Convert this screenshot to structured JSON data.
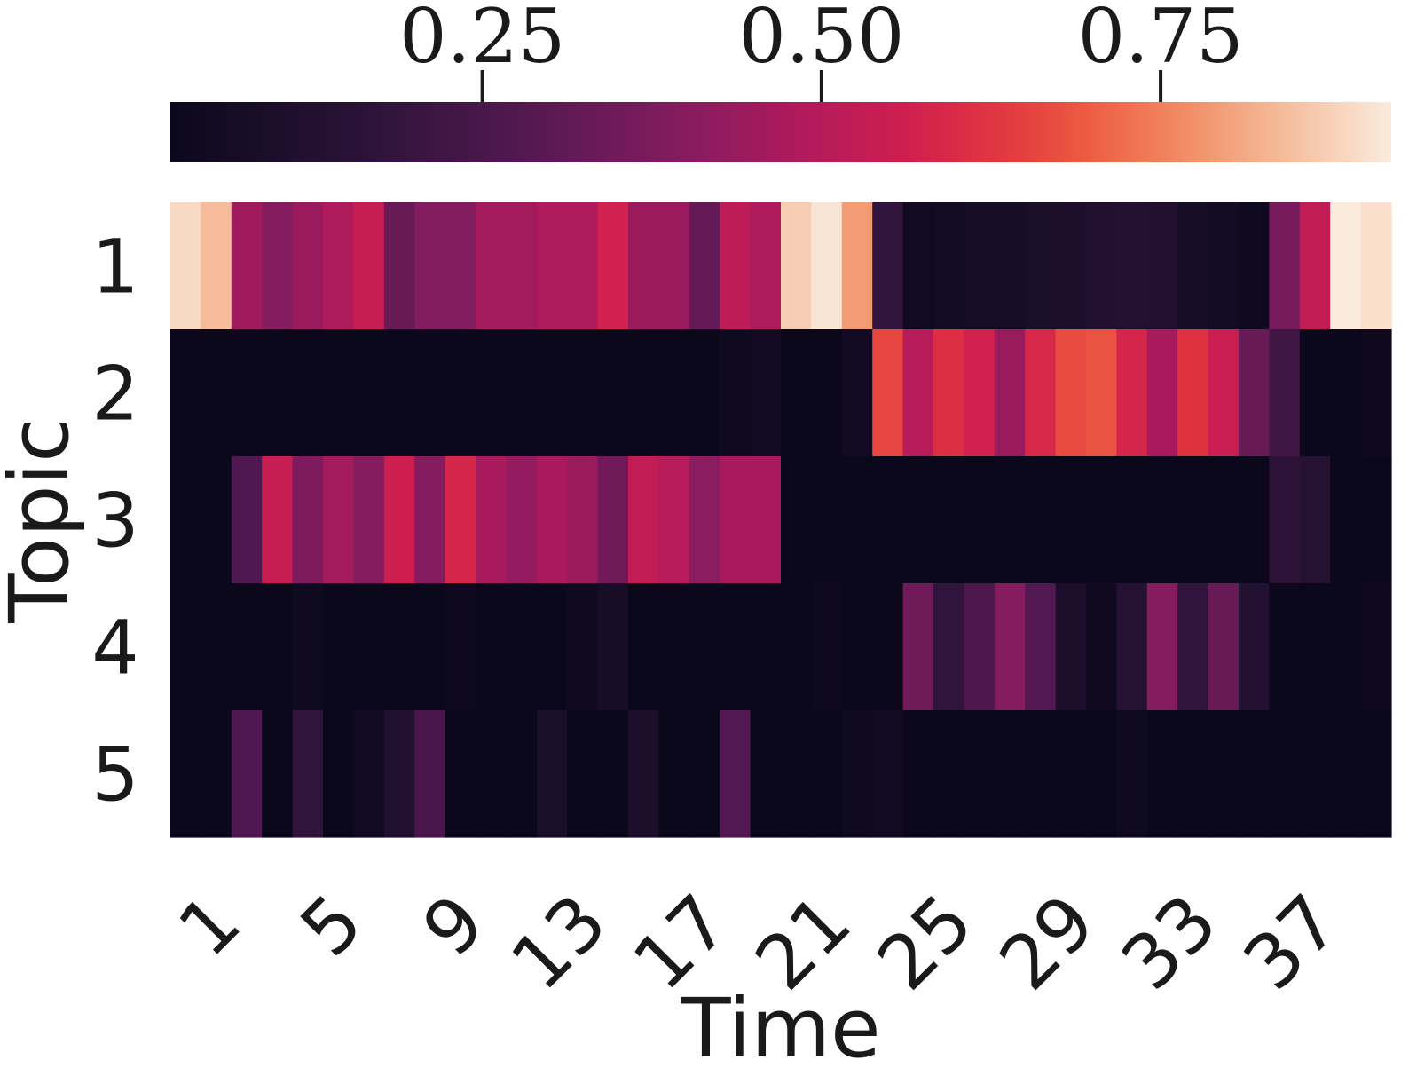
{
  "chart_data": {
    "type": "heatmap",
    "title": "",
    "xlabel": "Time",
    "ylabel": "Topic",
    "x_categories": [
      "1",
      "2",
      "3",
      "4",
      "5",
      "6",
      "7",
      "8",
      "9",
      "10",
      "11",
      "12",
      "13",
      "14",
      "15",
      "16",
      "17",
      "18",
      "19",
      "20",
      "21",
      "22",
      "23",
      "24",
      "25",
      "26",
      "27",
      "28",
      "29",
      "30",
      "31",
      "32",
      "33",
      "34",
      "35",
      "36",
      "37",
      "38",
      "39",
      "40"
    ],
    "x_tick_labels": [
      "1",
      "5",
      "9",
      "13",
      "17",
      "21",
      "25",
      "29",
      "33",
      "37"
    ],
    "y_categories": [
      "1",
      "2",
      "3",
      "4",
      "5"
    ],
    "values": [
      [
        0.89,
        0.84,
        0.45,
        0.4,
        0.44,
        0.48,
        0.54,
        0.33,
        0.39,
        0.39,
        0.46,
        0.46,
        0.48,
        0.48,
        0.57,
        0.44,
        0.44,
        0.32,
        0.52,
        0.48,
        0.87,
        0.91,
        0.79,
        0.18,
        0.05,
        0.06,
        0.07,
        0.08,
        0.09,
        0.1,
        0.12,
        0.13,
        0.12,
        0.08,
        0.06,
        0.04,
        0.37,
        0.53,
        0.92,
        0.9
      ],
      [
        0.02,
        0.02,
        0.01,
        0.02,
        0.02,
        0.02,
        0.02,
        0.02,
        0.02,
        0.02,
        0.02,
        0.02,
        0.02,
        0.02,
        0.02,
        0.02,
        0.02,
        0.02,
        0.04,
        0.05,
        0.02,
        0.01,
        0.05,
        0.66,
        0.5,
        0.61,
        0.57,
        0.44,
        0.59,
        0.67,
        0.68,
        0.58,
        0.47,
        0.62,
        0.55,
        0.33,
        0.22,
        0.02,
        0.02,
        0.03
      ],
      [
        0.02,
        0.02,
        0.27,
        0.54,
        0.38,
        0.46,
        0.4,
        0.56,
        0.4,
        0.58,
        0.47,
        0.43,
        0.47,
        0.44,
        0.35,
        0.53,
        0.5,
        0.41,
        0.47,
        0.47,
        0.02,
        0.01,
        0.02,
        0.02,
        0.02,
        0.02,
        0.02,
        0.02,
        0.02,
        0.02,
        0.02,
        0.02,
        0.02,
        0.01,
        0.02,
        0.02,
        0.17,
        0.14,
        0.02,
        0.02
      ],
      [
        0.02,
        0.02,
        0.02,
        0.02,
        0.04,
        0.02,
        0.02,
        0.02,
        0.02,
        0.03,
        0.02,
        0.02,
        0.02,
        0.04,
        0.08,
        0.02,
        0.01,
        0.02,
        0.02,
        0.02,
        0.02,
        0.03,
        0.02,
        0.02,
        0.35,
        0.18,
        0.26,
        0.4,
        0.28,
        0.1,
        0.04,
        0.14,
        0.4,
        0.18,
        0.33,
        0.13,
        0.02,
        0.02,
        0.02,
        0.03
      ],
      [
        0.02,
        0.02,
        0.27,
        0.02,
        0.18,
        0.02,
        0.05,
        0.12,
        0.25,
        0.02,
        0.02,
        0.02,
        0.09,
        0.02,
        0.02,
        0.1,
        0.02,
        0.02,
        0.28,
        0.02,
        0.02,
        0.02,
        0.04,
        0.05,
        0.02,
        0.02,
        0.02,
        0.02,
        0.02,
        0.01,
        0.01,
        0.04,
        0.02,
        0.02,
        0.02,
        0.02,
        0.02,
        0.02,
        0.02,
        0.02
      ]
    ],
    "colorbar": {
      "colormap": "rocket",
      "range": [
        0.02,
        0.92
      ],
      "ticks": [
        0.25,
        0.5,
        0.75
      ],
      "tick_labels": [
        "0.25",
        "0.50",
        "0.75"
      ],
      "placement": "top"
    }
  }
}
